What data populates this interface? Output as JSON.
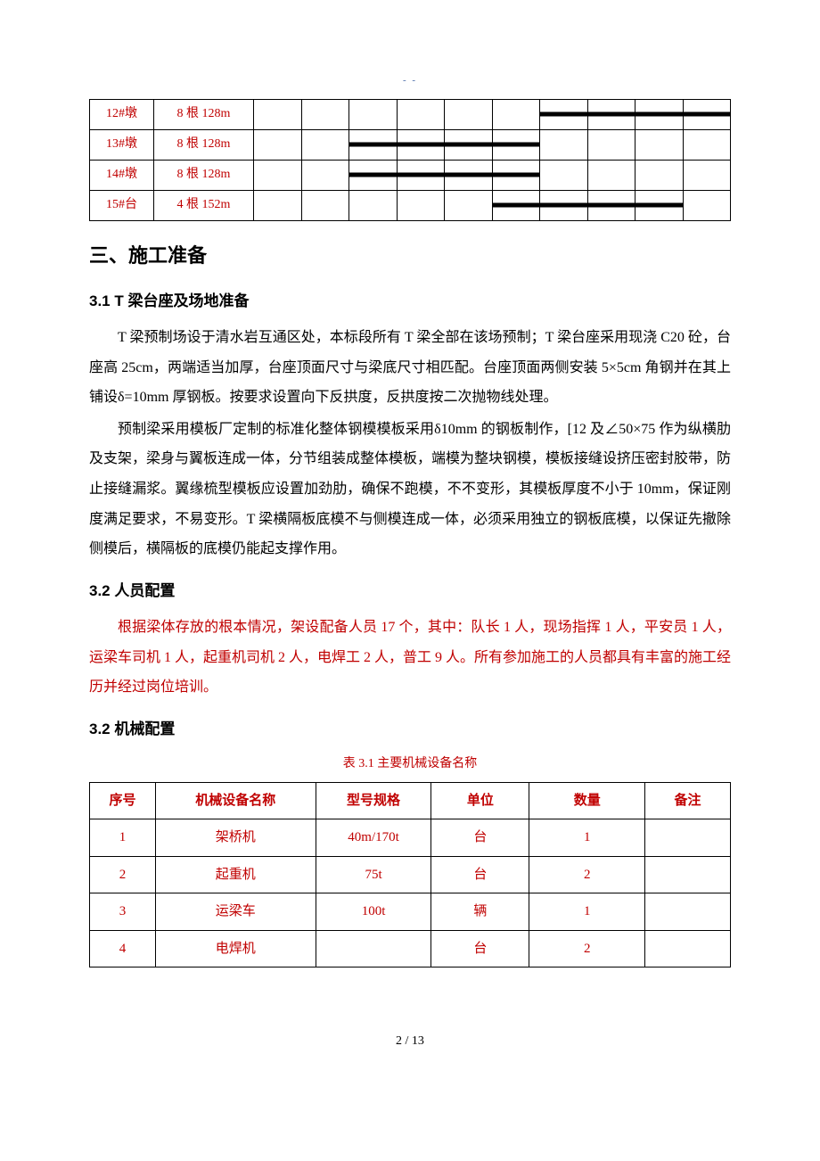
{
  "topMarker": "- -",
  "table1": {
    "rows": [
      {
        "c1": "12#墩",
        "c2": "8 根 128m",
        "bar": {
          "start": 6,
          "end": 10
        }
      },
      {
        "c1": "13#墩",
        "c2": "8 根 128m",
        "bar": {
          "start": 2,
          "end": 6
        }
      },
      {
        "c1": "14#墩",
        "c2": "8 根 128m",
        "bar": {
          "start": 2,
          "end": 6
        }
      },
      {
        "c1": "15#台",
        "c2": "4 根 152m",
        "bar": {
          "start": 5,
          "end": 9
        }
      }
    ],
    "extraCols": 10
  },
  "sections": {
    "s3Title": "三、施工准备",
    "s31Title": "3.1 T 梁台座及场地准备",
    "s31p1": "T 梁预制场设于清水岩互通区处，本标段所有 T 梁全部在该场预制；T 梁台座采用现浇 C20 砼，台座高 25cm，两端适当加厚，台座顶面尺寸与梁底尺寸相匹配。台座顶面两侧安装 5×5cm 角钢并在其上铺设δ=10mm 厚钢板。按要求设置向下反拱度，反拱度按二次抛物线处理。",
    "s31p2": "预制梁采用模板厂定制的标准化整体钢模模板采用δ10mm 的钢板制作，[12 及∠50×75 作为纵横肋及支架，梁身与翼板连成一体，分节组装成整体模板，端模为整块钢模，模板接缝设挤压密封胶带，防止接缝漏浆。翼缘梳型模板应设置加劲肋，确保不跑模，不不变形，其模板厚度不小于 10mm，保证刚度满足要求，不易变形。T 梁横隔板底模不与侧模连成一体，必须采用独立的钢板底模，以保证先撤除侧模后，横隔板的底模仍能起支撑作用。",
    "s32aTitle": "3.2  人员配置",
    "s32ap1": "根据梁体存放的根本情况，架设配备人员 17 个，其中：队长 1 人，现场指挥 1 人，平安员 1 人，运梁车司机 1 人，起重机司机 2 人，电焊工 2 人，普工 9 人。所有参加施工的人员都具有丰富的施工经历并经过岗位培训。",
    "s32bTitle": "3.2  机械配置",
    "table2Caption": "表 3.1  主要机械设备名称"
  },
  "table2": {
    "headers": [
      "序号",
      "机械设备名称",
      "型号规格",
      "单位",
      "数量",
      "备注"
    ],
    "rows": [
      [
        "1",
        "架桥机",
        "40m/170t",
        "台",
        "1",
        ""
      ],
      [
        "2",
        "起重机",
        "75t",
        "台",
        "2",
        ""
      ],
      [
        "3",
        "运梁车",
        "100t",
        "辆",
        "1",
        ""
      ],
      [
        "4",
        "电焊机",
        "",
        "台",
        "2",
        ""
      ]
    ]
  },
  "pageNum": "2  /  13"
}
